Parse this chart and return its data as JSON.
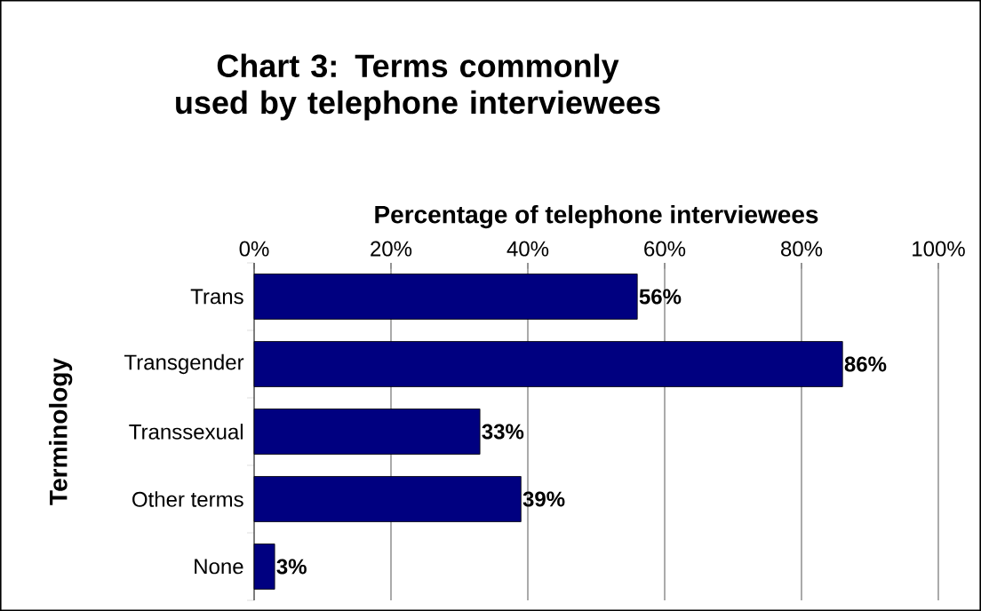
{
  "chart_data": {
    "type": "bar",
    "orientation": "horizontal",
    "title": "Chart 3: Terms commonly used by telephone interviewees",
    "xlabel": "Percentage of telephone interviewees",
    "ylabel": "Terminology",
    "categories": [
      "Trans",
      "Transgender",
      "Transsexual",
      "Other terms",
      "None"
    ],
    "values": [
      56,
      86,
      33,
      39,
      3
    ],
    "value_labels": [
      "56%",
      "86%",
      "33%",
      "39%",
      "3%"
    ],
    "color": "#000080",
    "xlim": [
      0,
      100
    ],
    "xticks": [
      {
        "value": 0,
        "label": "0%"
      },
      {
        "value": 20,
        "label": "20%"
      },
      {
        "value": 40,
        "label": "40%"
      },
      {
        "value": 60,
        "label": "60%"
      },
      {
        "value": 80,
        "label": "80%"
      },
      {
        "value": 100,
        "label": "100%"
      }
    ],
    "grid": "x"
  }
}
